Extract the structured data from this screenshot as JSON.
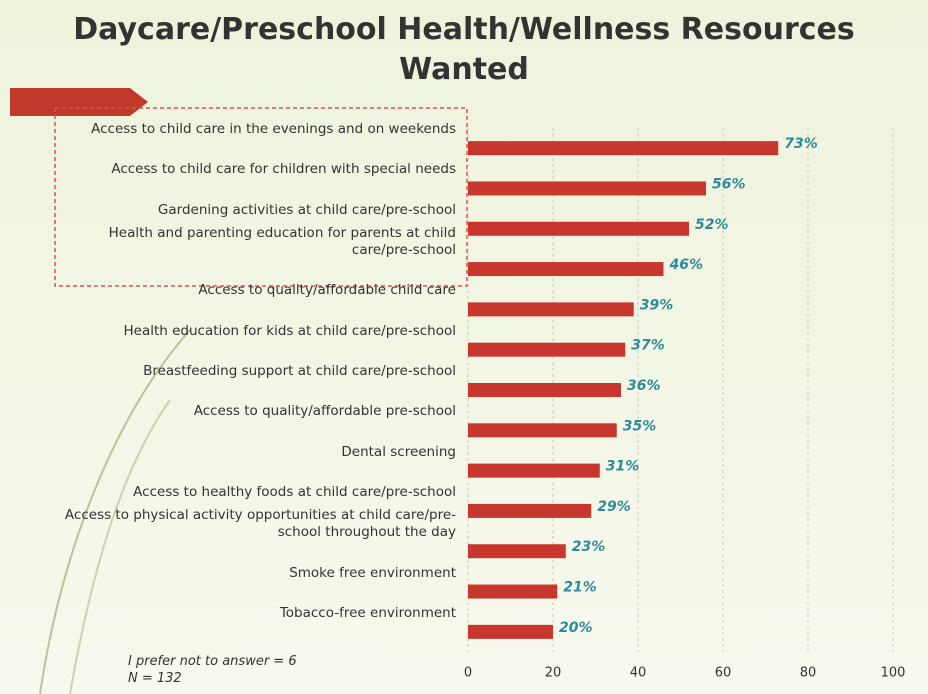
{
  "chart_data": {
    "type": "bar",
    "orientation": "horizontal",
    "title": "Daycare/Preschool Health/Wellness Resources Wanted",
    "categories": [
      "Access to child care in the evenings and on weekends",
      "Access to child care for children with special needs",
      "Gardening activities at child care/pre-school",
      "Health and parenting education for parents at child care/pre-school",
      "Access to quality/affordable child care",
      "Health education for kids at child care/pre-school",
      "Breastfeeding support at child care/pre-school",
      "Access to quality/affordable pre-school",
      "Dental screening",
      "Access to healthy foods at child care/pre-school",
      "Access to physical activity opportunities at child care/pre-school throughout the day",
      "Smoke free environment",
      "Tobacco-free environment"
    ],
    "values": [
      73,
      56,
      52,
      46,
      39,
      37,
      36,
      35,
      31,
      29,
      23,
      21,
      20
    ],
    "value_labels": [
      "73%",
      "56%",
      "52%",
      "46%",
      "39%",
      "37%",
      "36%",
      "35%",
      "31%",
      "29%",
      "23%",
      "21%",
      "20%"
    ],
    "color": "#c8372d",
    "label_color": "#2e8b9a",
    "xlim": [
      0,
      100
    ],
    "xticks": [
      0,
      20,
      40,
      60,
      80,
      100
    ],
    "grid": true,
    "notes": [
      "I prefer not to answer = 6",
      "N = 132"
    ]
  }
}
